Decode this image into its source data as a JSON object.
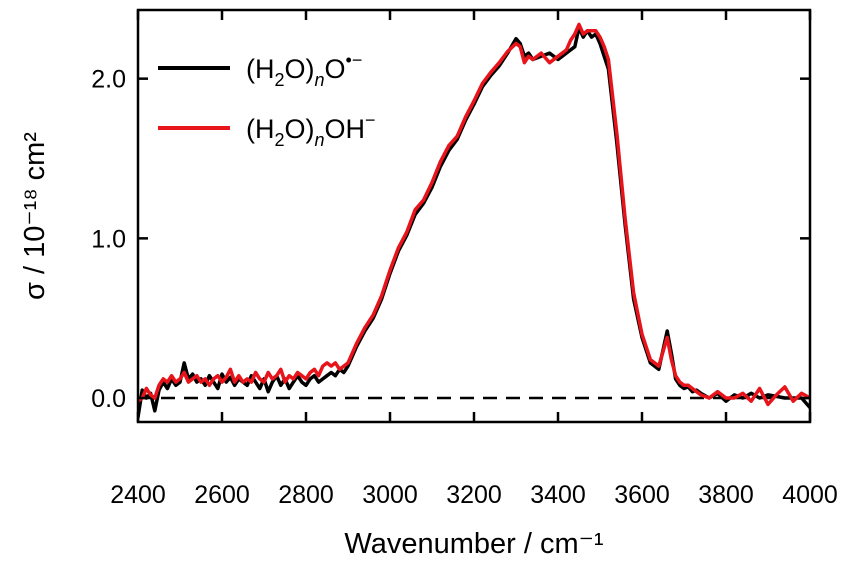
{
  "chart_data": {
    "type": "line",
    "xlabel": "Wavenumber / cm⁻¹",
    "ylabel": "σ / 10⁻¹⁸ cm²",
    "xlim": [
      2400,
      4000
    ],
    "ylim": [
      -0.15,
      2.43
    ],
    "x_ticks": [
      2400,
      2600,
      2800,
      3000,
      3200,
      3400,
      3600,
      3800,
      4000
    ],
    "x_tick_labels": [
      "2400",
      "2600",
      "2800",
      "3000",
      "3200",
      "3400",
      "3600",
      "3800",
      "4000"
    ],
    "y_ticks": [
      0.0,
      1.0,
      2.0
    ],
    "y_tick_labels": [
      "0.0",
      "1.0",
      "2.0"
    ],
    "grid": false,
    "legend_position": "top-left",
    "baseline": {
      "y": 0.0,
      "style": "dashed",
      "color": "#000000"
    },
    "series": [
      {
        "name": "(H2O)nO•−",
        "legend": {
          "open": "(H",
          "sub1": "2",
          "mid": "O)",
          "sub2": "n",
          "end": "O",
          "sup": "•−"
        },
        "color": "#000000",
        "x": [
          2400,
          2410,
          2420,
          2430,
          2440,
          2450,
          2460,
          2470,
          2480,
          2490,
          2500,
          2510,
          2520,
          2530,
          2540,
          2550,
          2560,
          2570,
          2580,
          2590,
          2600,
          2610,
          2620,
          2630,
          2640,
          2650,
          2660,
          2670,
          2680,
          2690,
          2700,
          2710,
          2720,
          2730,
          2740,
          2750,
          2760,
          2770,
          2780,
          2790,
          2800,
          2810,
          2820,
          2830,
          2840,
          2850,
          2860,
          2870,
          2880,
          2890,
          2900,
          2920,
          2940,
          2960,
          2980,
          3000,
          3020,
          3040,
          3060,
          3080,
          3100,
          3120,
          3140,
          3160,
          3180,
          3200,
          3220,
          3240,
          3260,
          3280,
          3300,
          3310,
          3320,
          3330,
          3340,
          3360,
          3380,
          3400,
          3420,
          3430,
          3440,
          3450,
          3460,
          3470,
          3480,
          3490,
          3500,
          3510,
          3520,
          3540,
          3560,
          3580,
          3600,
          3620,
          3640,
          3660,
          3670,
          3680,
          3690,
          3700,
          3710,
          3720,
          3730,
          3740,
          3760,
          3780,
          3800,
          3820,
          3840,
          3860,
          3880,
          3900,
          3920,
          3940,
          3960,
          3980,
          4000
        ],
        "y": [
          -0.12,
          0.05,
          0.0,
          0.03,
          -0.08,
          0.05,
          0.1,
          0.06,
          0.12,
          0.08,
          0.1,
          0.22,
          0.12,
          0.15,
          0.1,
          0.12,
          0.08,
          0.14,
          0.1,
          0.06,
          0.15,
          0.1,
          0.13,
          0.08,
          0.12,
          0.1,
          0.08,
          0.14,
          0.1,
          0.06,
          0.12,
          0.04,
          0.1,
          0.14,
          0.08,
          0.12,
          0.06,
          0.1,
          0.14,
          0.1,
          0.08,
          0.12,
          0.14,
          0.1,
          0.12,
          0.14,
          0.16,
          0.14,
          0.18,
          0.16,
          0.2,
          0.32,
          0.42,
          0.5,
          0.62,
          0.78,
          0.92,
          1.02,
          1.15,
          1.22,
          1.32,
          1.45,
          1.55,
          1.62,
          1.74,
          1.84,
          1.95,
          2.02,
          2.08,
          2.16,
          2.25,
          2.22,
          2.14,
          2.16,
          2.12,
          2.14,
          2.16,
          2.12,
          2.16,
          2.18,
          2.2,
          2.32,
          2.26,
          2.3,
          2.26,
          2.28,
          2.22,
          2.14,
          2.06,
          1.6,
          1.08,
          0.62,
          0.38,
          0.22,
          0.18,
          0.42,
          0.28,
          0.12,
          0.08,
          0.06,
          0.07,
          0.04,
          0.05,
          0.03,
          0.0,
          0.03,
          -0.02,
          0.02,
          0.0,
          0.03,
          0.0,
          0.02,
          0.01,
          0.0,
          0.0,
          0.0,
          -0.06
        ]
      },
      {
        "name": "(H2O)nOH−",
        "legend": {
          "open": "(H",
          "sub1": "2",
          "mid": "O)",
          "sub2": "n",
          "end": "OH",
          "sup": "−"
        },
        "color": "#e8141b",
        "x": [
          2400,
          2410,
          2420,
          2430,
          2440,
          2450,
          2460,
          2470,
          2480,
          2490,
          2500,
          2510,
          2520,
          2530,
          2540,
          2550,
          2560,
          2570,
          2580,
          2590,
          2600,
          2610,
          2620,
          2630,
          2640,
          2650,
          2660,
          2670,
          2680,
          2690,
          2700,
          2710,
          2720,
          2730,
          2740,
          2750,
          2760,
          2770,
          2780,
          2790,
          2800,
          2810,
          2820,
          2830,
          2840,
          2850,
          2860,
          2870,
          2880,
          2890,
          2900,
          2920,
          2940,
          2960,
          2980,
          3000,
          3020,
          3040,
          3060,
          3080,
          3100,
          3120,
          3140,
          3160,
          3180,
          3200,
          3220,
          3240,
          3260,
          3280,
          3300,
          3310,
          3320,
          3330,
          3340,
          3360,
          3380,
          3400,
          3420,
          3430,
          3440,
          3450,
          3460,
          3470,
          3480,
          3490,
          3500,
          3510,
          3520,
          3540,
          3560,
          3580,
          3600,
          3620,
          3640,
          3660,
          3670,
          3680,
          3690,
          3700,
          3710,
          3720,
          3730,
          3740,
          3760,
          3780,
          3800,
          3820,
          3840,
          3860,
          3880,
          3900,
          3920,
          3940,
          3960,
          3980,
          4000
        ],
        "y": [
          -0.02,
          0.0,
          0.06,
          0.02,
          0.0,
          0.08,
          0.12,
          0.1,
          0.14,
          0.1,
          0.12,
          0.16,
          0.1,
          0.12,
          0.14,
          0.1,
          0.12,
          0.08,
          0.12,
          0.14,
          0.1,
          0.13,
          0.18,
          0.1,
          0.14,
          0.1,
          0.12,
          0.1,
          0.16,
          0.12,
          0.1,
          0.16,
          0.12,
          0.14,
          0.18,
          0.1,
          0.14,
          0.12,
          0.16,
          0.14,
          0.12,
          0.16,
          0.18,
          0.14,
          0.2,
          0.22,
          0.2,
          0.22,
          0.18,
          0.2,
          0.22,
          0.34,
          0.44,
          0.52,
          0.64,
          0.8,
          0.94,
          1.04,
          1.18,
          1.24,
          1.35,
          1.48,
          1.58,
          1.64,
          1.76,
          1.86,
          1.97,
          2.04,
          2.1,
          2.17,
          2.22,
          2.2,
          2.1,
          2.14,
          2.12,
          2.16,
          2.1,
          2.14,
          2.18,
          2.24,
          2.28,
          2.34,
          2.28,
          2.3,
          2.3,
          2.3,
          2.26,
          2.2,
          2.12,
          1.66,
          1.12,
          0.66,
          0.4,
          0.24,
          0.2,
          0.38,
          0.24,
          0.14,
          0.1,
          0.08,
          0.08,
          0.06,
          0.04,
          0.02,
          0.0,
          0.04,
          0.0,
          0.0,
          0.03,
          -0.02,
          0.06,
          -0.04,
          0.02,
          0.07,
          -0.02,
          0.03,
          0.0
        ]
      }
    ]
  }
}
